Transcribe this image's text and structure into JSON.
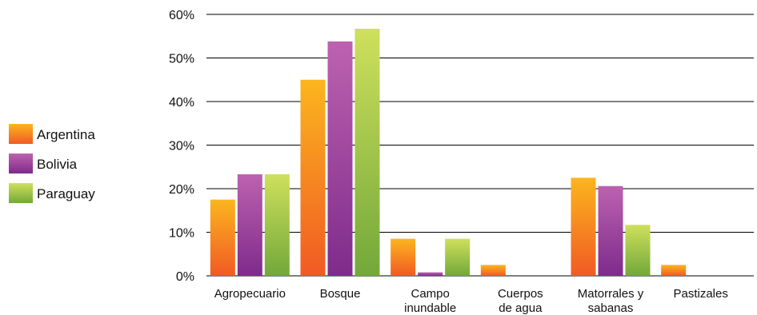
{
  "chart_data": {
    "type": "bar",
    "categories": [
      [
        "Agropecuario"
      ],
      [
        "Bosque"
      ],
      [
        "Campo",
        "inundable"
      ],
      [
        "Cuerpos",
        "de agua"
      ],
      [
        "Matorrales y",
        "sabanas"
      ],
      [
        "Pastizales"
      ]
    ],
    "series": [
      {
        "name": "Argentina",
        "values": [
          17.5,
          45.0,
          8.5,
          2.5,
          22.5,
          2.5
        ],
        "color_top": "#FBB61E",
        "color_bottom": "#F15A24"
      },
      {
        "name": "Bolivia",
        "values": [
          23.3,
          53.8,
          0.8,
          0,
          20.6,
          0
        ],
        "color_top": "#BD62B0",
        "color_bottom": "#7E2B8B"
      },
      {
        "name": "Paraguay",
        "values": [
          23.3,
          56.7,
          8.5,
          0,
          11.7,
          0
        ],
        "color_top": "#CFE05C",
        "color_bottom": "#72A83A"
      }
    ],
    "ylim": [
      0,
      60
    ],
    "yticks": [
      0,
      10,
      20,
      30,
      40,
      50,
      60
    ],
    "ytick_suffix": "%",
    "grid": true,
    "legend_position": "left",
    "title": "",
    "xlabel": "",
    "ylabel": ""
  }
}
